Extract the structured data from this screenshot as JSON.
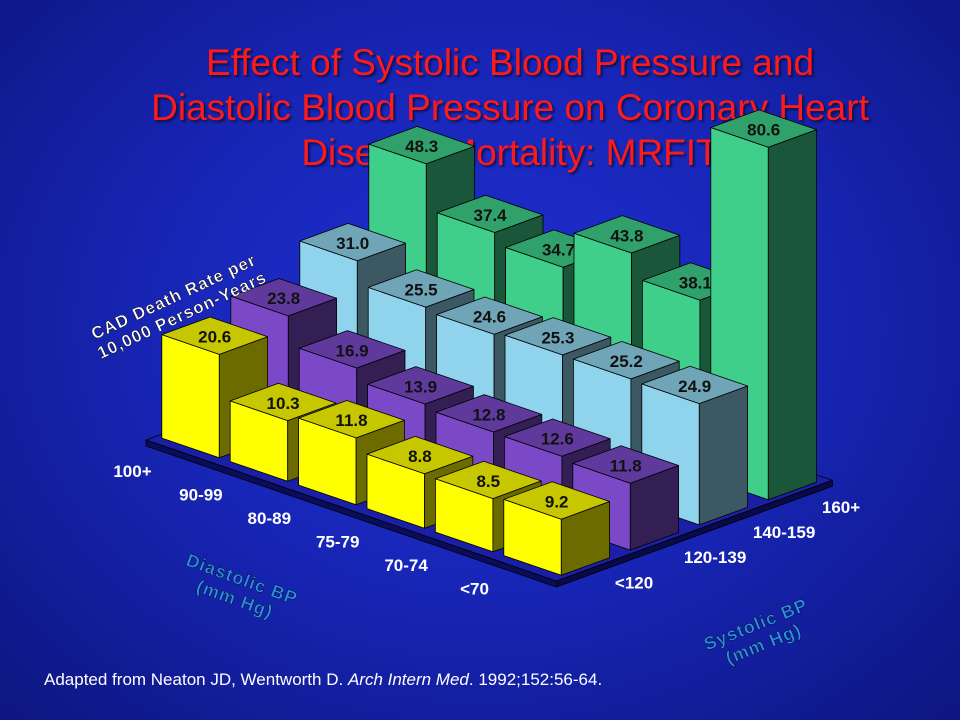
{
  "title_lines": [
    "Effect of Systolic Blood Pressure and",
    "Diastolic Blood Pressure on Coronary Heart",
    "Disease Mortality: MRFIT"
  ],
  "citation": {
    "prefix": "Adapted from Neaton JD, Wentworth D. ",
    "journal": "Arch Intern Med",
    "suffix": ". 1992;152:56-64."
  },
  "colors": {
    "background": "#1826b8",
    "title": "#ff1a1a",
    "axis_title": "#2a8fe8",
    "sbp_lt120": "#ffff00",
    "sbp_120_139": "#7b49c8",
    "sbp_140_159": "#8fd3ec",
    "sbp_160plus": "#3fcf8a"
  },
  "chart_data": {
    "type": "bar3d",
    "zlabel_lines": [
      "CAD Death Rate per",
      "10,000 Person-Years"
    ],
    "dbp_axis_label_lines": [
      "Diastolic BP",
      "(mm Hg)"
    ],
    "sbp_axis_label_lines": [
      "Systolic BP",
      "(mm Hg)"
    ],
    "dbp_categories": [
      "100+",
      "90-99",
      "80-89",
      "75-79",
      "70-74",
      "<70"
    ],
    "sbp_categories": [
      "<120",
      "120-139",
      "140-159",
      "160+"
    ],
    "values": [
      [
        "20.6",
        "23.8",
        "31.0",
        "48.3"
      ],
      [
        "10.3",
        "16.9",
        "25.5",
        "37.4"
      ],
      [
        "11.8",
        "13.9",
        "24.6",
        "34.7"
      ],
      [
        "8.8",
        "12.8",
        "25.3",
        "43.8"
      ],
      [
        "8.5",
        "12.6",
        "25.2",
        "38.1"
      ],
      [
        "9.2",
        "11.8",
        "24.9",
        "80.6"
      ]
    ]
  }
}
